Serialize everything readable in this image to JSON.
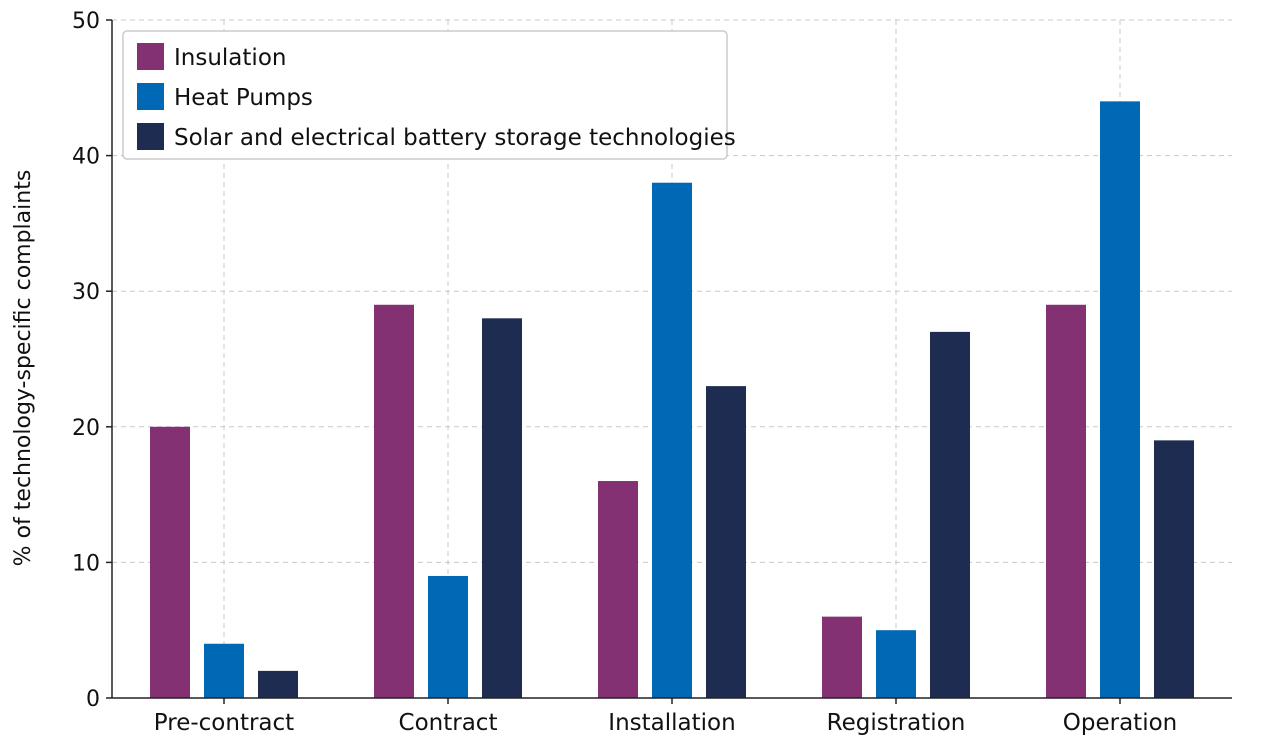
{
  "chart_data": {
    "type": "bar",
    "title": "",
    "xlabel": "",
    "ylabel": "% of technology-specific complaints",
    "ylim": [
      0,
      50
    ],
    "yticks": [
      0,
      10,
      20,
      30,
      40,
      50
    ],
    "grid": true,
    "legend_position": "top-left",
    "categories": [
      "Pre-contract",
      "Contract",
      "Installation",
      "Registration",
      "Operation"
    ],
    "series": [
      {
        "name": "Insulation",
        "color": "#833173",
        "values": [
          20,
          29,
          16,
          6,
          29
        ]
      },
      {
        "name": "Heat Pumps",
        "color": "#0068b4",
        "values": [
          4,
          9,
          38,
          5,
          44
        ]
      },
      {
        "name": "Solar and electrical battery storage technologies",
        "color": "#1d2c50",
        "values": [
          2,
          28,
          23,
          27,
          19
        ]
      }
    ]
  }
}
